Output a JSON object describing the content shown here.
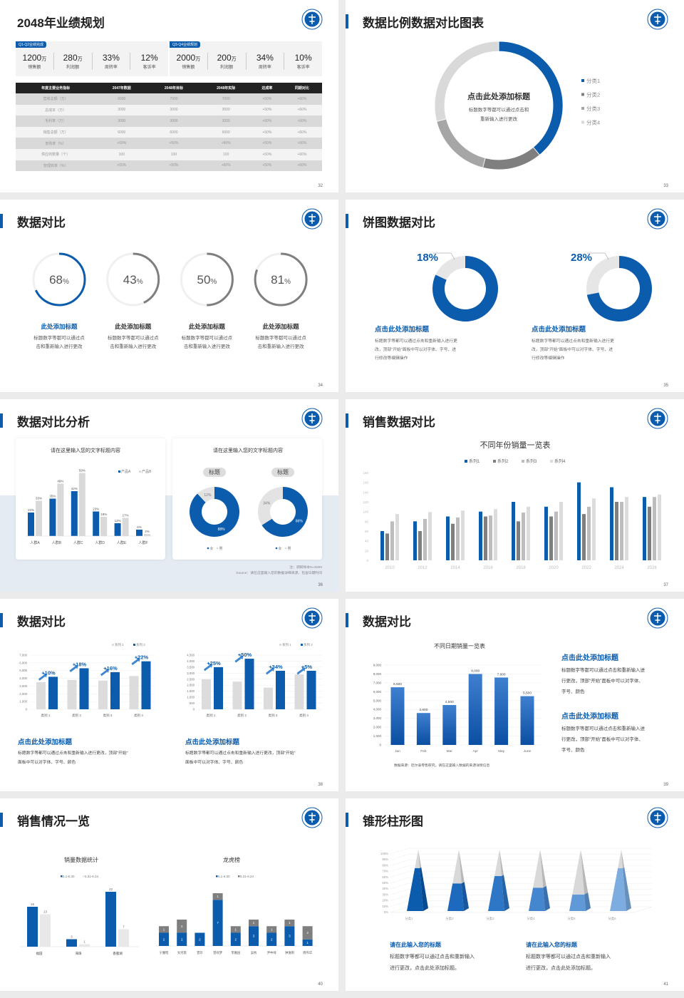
{
  "colors": {
    "blue": "#0b5cad",
    "dark_gray": "#7f7f7f",
    "mid_gray": "#a6a6a6",
    "light_gray": "#d9d9d9"
  },
  "logo_icon": "university-seal-icon",
  "s32": {
    "title": "2048年业绩规划",
    "page": "32",
    "kpi_groups": [
      {
        "tag": "Q1-Q2业绩完成",
        "items": [
          {
            "value": "1200",
            "unit": "万",
            "label": "销售额"
          },
          {
            "value": "280",
            "unit": "万",
            "label": "利润额"
          },
          {
            "value": "33%",
            "unit": "",
            "label": "周转率"
          },
          {
            "value": "12%",
            "unit": "",
            "label": "客诉率"
          }
        ]
      },
      {
        "tag": "Q3-Q4业绩规划",
        "items": [
          {
            "value": "2000",
            "unit": "万",
            "label": "销售额"
          },
          {
            "value": "200",
            "unit": "万",
            "label": "利润额"
          },
          {
            "value": "34%",
            "unit": "",
            "label": "周转率"
          },
          {
            "value": "10%",
            "unit": "",
            "label": "客诉率"
          }
        ]
      }
    ],
    "table": {
      "headers": [
        "年度主要业务指标",
        "2047年数据",
        "2048年目标",
        "2048年实际",
        "达成率",
        "同期对比"
      ],
      "rows": [
        [
          "营收总额（万）",
          "6000",
          "7000",
          "7000",
          "+50%",
          "+60%"
        ],
        [
          "总成本（万）",
          "3000",
          "3000",
          "3000",
          "+50%",
          "+60%"
        ],
        [
          "毛利率（万）",
          "3000",
          "3000",
          "3000",
          "+50%",
          "+60%"
        ],
        [
          "销售总额（万）",
          "6000",
          "6000",
          "6000",
          "+50%",
          "+60%"
        ],
        [
          "复购率（%）",
          "+60%",
          "+50%",
          "+60%",
          "+50%",
          "+60%"
        ],
        [
          "供应商数量（个）",
          "100",
          "100",
          "100",
          "+50%",
          "+60%"
        ],
        [
          "管理效率（%）",
          "+60%",
          "+50%",
          "+60%",
          "+50%",
          "+60%"
        ]
      ]
    }
  },
  "s33": {
    "title": "数据比例数据对比图表",
    "page": "33",
    "center_title": "点击此处添加标题",
    "center_desc": [
      "标题数字等都可以通过点击和",
      "重新输入进行更改"
    ],
    "chart_data": {
      "type": "pie",
      "donut": true,
      "categories": [
        "分类1",
        "分类2",
        "分类3",
        "分类4"
      ],
      "values": [
        39,
        15,
        17,
        29
      ],
      "legend": "right"
    }
  },
  "s34": {
    "title": "数据对比",
    "page": "34",
    "items": [
      {
        "value": 68,
        "label": "68",
        "unit": "%",
        "title": "此处添加标题",
        "desc": [
          "标题数字等都可以通过点",
          "击和重新输入进行更改"
        ],
        "accent": true
      },
      {
        "value": 43,
        "label": "43",
        "unit": "%",
        "title": "此处添加标题",
        "desc": [
          "标题数字等都可以通过点",
          "击和重新输入进行更改"
        ]
      },
      {
        "value": 50,
        "label": "50",
        "unit": "%",
        "title": "此处添加标题",
        "desc": [
          "标题数字等都可以通过点",
          "击和重新输入进行更改"
        ]
      },
      {
        "value": 81,
        "label": "81",
        "unit": "%",
        "title": "此处添加标题",
        "desc": [
          "标题数字等都可以通过点",
          "击和重新输入进行更改"
        ]
      }
    ]
  },
  "s35": {
    "title": "饼图数据对比",
    "page": "35",
    "items": [
      {
        "value": 18,
        "label": "18%",
        "title": "点击此处添加标题",
        "desc": [
          "标题数字等都可以通过点击和重新输入进行更",
          "改，顶部“开始”面板中可以对字体、字号、进",
          "行修改等编辑操作"
        ]
      },
      {
        "value": 28,
        "label": "28%",
        "title": "点击此处添加标题",
        "desc": [
          "标题数字等都可以通过点击和重新输入进行更",
          "改，顶部“开始”面板中可以对字体、字号、进",
          "行修改等编辑操作"
        ]
      }
    ]
  },
  "s36": {
    "title": "数据对比分析",
    "page": "36",
    "bar_chart": {
      "type": "bar",
      "title": "请在这里输入您的文字标题内容",
      "categories": [
        "人群A",
        "人群B",
        "人群C",
        "人群D",
        "人群E",
        "人群F"
      ],
      "series": [
        {
          "name": "产品A",
          "values": [
            22,
            35,
            42,
            23,
            12,
            6
          ]
        },
        {
          "name": "产品B",
          "values": [
            33,
            49,
            59,
            18,
            17,
            2
          ]
        }
      ],
      "value_labels": [
        [
          "22%",
          "35%",
          "42%",
          "23%",
          "12%",
          "6%"
        ],
        [
          "33%",
          "49%",
          "59%",
          "18%",
          "17%",
          "2%"
        ]
      ],
      "legend": "top-right"
    },
    "donut_title": "请在这里输入您的文字标题内容",
    "donuts": [
      {
        "pill": "标题",
        "values": [
          88,
          12
        ],
        "labels": [
          "88%",
          "12%"
        ],
        "legend": [
          "女",
          "男"
        ]
      },
      {
        "pill": "标题",
        "values": [
          66,
          34
        ],
        "labels": [
          "66%",
          "34%"
        ],
        "legend": [
          "女",
          "男"
        ]
      }
    ],
    "note": "注：调研样本N=5000",
    "source": "Source：请在这里输入您的数据详细来源，包含日期时间"
  },
  "s37": {
    "title": "销售数据对比",
    "page": "37",
    "chart_data": {
      "type": "bar",
      "title": "不同年份销量一览表",
      "categories": [
        "2010",
        "2012",
        "2014",
        "2016",
        "2018",
        "2020",
        "2022",
        "2024",
        "2026"
      ],
      "ylim": [
        0,
        180
      ],
      "yticks": [
        "0",
        "20",
        "40",
        "60",
        "80",
        "100",
        "120",
        "140",
        "160",
        "180"
      ],
      "legend": "top",
      "series": [
        {
          "name": "系列1",
          "values": [
            60,
            80,
            90,
            100,
            120,
            110,
            160,
            150,
            130
          ]
        },
        {
          "name": "系列2",
          "values": [
            55,
            60,
            75,
            90,
            80,
            90,
            95,
            120,
            110
          ]
        },
        {
          "name": "系列3",
          "values": [
            80,
            85,
            88,
            92,
            98,
            100,
            110,
            120,
            130
          ]
        },
        {
          "name": "系列4",
          "values": [
            95,
            99,
            102,
            105,
            110,
            120,
            127,
            130,
            135
          ]
        }
      ]
    }
  },
  "s38": {
    "title": "数据对比",
    "page": "38",
    "charts": [
      {
        "type": "bar",
        "categories": [
          "类别 1",
          "类别 2",
          "类别 3",
          "类别 4"
        ],
        "ylim": [
          0,
          7000
        ],
        "yticks": [
          "0",
          "1,000",
          "2,000",
          "3,000",
          "4,000",
          "5,000",
          "6,000",
          "7,000"
        ],
        "series": [
          {
            "name": "系列 1",
            "values": [
              3500,
              3800,
              3700,
              4300
            ]
          },
          {
            "name": "系列 2",
            "values": [
              4200,
              5300,
              4800,
              6200
            ]
          }
        ],
        "growth": [
          "+10%",
          "+18%",
          "+16%",
          "+22%"
        ],
        "title": "点击此处添加标题",
        "desc": [
          "标题数字等都可以通过点击和重新输入进行更改，顶部“开始”",
          "面板中可以对字体、字号、颜色"
        ]
      },
      {
        "type": "bar",
        "categories": [
          "类别 1",
          "类别 2",
          "类别 3",
          "类别 4"
        ],
        "ylim": [
          0,
          4500
        ],
        "yticks": [
          "0",
          "500",
          "1,000",
          "1,500",
          "2,000",
          "2,500",
          "3,000",
          "3,500",
          "4,000",
          "4,500"
        ],
        "series": [
          {
            "name": "系列 1",
            "values": [
              2500,
              2300,
              1800,
              2900
            ]
          },
          {
            "name": "系列 2",
            "values": [
              3500,
              4200,
              3200,
              3200
            ]
          }
        ],
        "growth": [
          "+25%",
          "+50%",
          "+34%",
          "+5%"
        ],
        "title": "点击此处添加标题",
        "desc": [
          "标题数字等都可以通过点击和重新输入进行更改，顶部“开始”",
          "面板中可以对字体、字号、颜色"
        ]
      }
    ]
  },
  "s39": {
    "title": "数据对比",
    "page": "39",
    "chart_data": {
      "type": "bar",
      "title": "不同日期销量一览表",
      "categories": [
        "Jan",
        "Feb",
        "Mar",
        "Apr",
        "May",
        "June"
      ],
      "values": [
        6500,
        3600,
        4500,
        8000,
        7600,
        5500
      ],
      "value_labels": [
        "6,500",
        "3,600",
        "4,500",
        "8,000",
        "7,600",
        "5,500"
      ],
      "ylim": [
        0,
        9000
      ],
      "yticks": [
        "0",
        "1,000",
        "2,000",
        "3,000",
        "4,000",
        "5,000",
        "6,000",
        "7,000",
        "8,000",
        "9,000"
      ]
    },
    "source": "数据来源：厄尔泰零售研究，请在这里输入数据的来源详情信息",
    "blocks": [
      {
        "title": "点击此处添加标题",
        "desc": [
          "标题数字等都可以通过点击和重新输入进",
          "行更改，顶部“开始”面板中可以对字体、",
          "字号、颜色"
        ]
      },
      {
        "title": "点击此处添加标题",
        "desc": [
          "标题数字等都可以通过点击和重新输入进",
          "行更改，顶部“开始”面板中可以对字体、",
          "字号、颜色"
        ]
      }
    ]
  },
  "s40": {
    "title": "销售情况一览",
    "page": "40",
    "left_chart": {
      "type": "bar",
      "title": "销量数据统计",
      "categories": [
        "福田",
        "海珠",
        "香蜜湖"
      ],
      "series": [
        {
          "name": "5.1-5.30",
          "values": [
            16,
            3,
            22
          ]
        },
        {
          "name": "5.31-6.24",
          "values": [
            13,
            1,
            7
          ]
        }
      ],
      "value_labels": [
        [
          "16",
          "3",
          "22"
        ],
        [
          "13",
          "1",
          "7"
        ]
      ],
      "legend": "top"
    },
    "right_chart": {
      "type": "bar",
      "stacked": true,
      "title": "龙虎榜",
      "categories": [
        "宁嘉昭",
        "文河南",
        "曾珍",
        "曾祥梦",
        "李嘉园",
        "吴杭",
        "尹中绿",
        "钟逸明",
        "周伟华"
      ],
      "series": [
        {
          "name": "5.1-5.30",
          "values": [
            2,
            2,
            2,
            7,
            2,
            3,
            2,
            3,
            1
          ]
        },
        {
          "name": "5.31-6.24",
          "values": [
            1,
            2,
            0,
            1,
            1,
            1,
            1,
            1,
            2
          ]
        }
      ],
      "value_labels": [
        [
          "2",
          "2",
          "2",
          "7",
          "2",
          "3",
          "2",
          "3",
          "1"
        ],
        [
          "1",
          "2",
          "0",
          "1",
          "1",
          "1",
          "1",
          "1",
          "2"
        ]
      ],
      "legend": "top"
    }
  },
  "s41": {
    "title": "锥形柱形图",
    "page": "41",
    "chart_data": {
      "type": "bar",
      "shape": "pyramid",
      "categories": [
        "分类1",
        "分类2",
        "分类3",
        "分类4",
        "分类5",
        "分类6"
      ],
      "values": [
        70,
        45,
        57,
        38,
        27,
        70
      ],
      "ylim": [
        0,
        100
      ],
      "yticks": [
        "0%",
        "10%",
        "20%",
        "30%",
        "40%",
        "50%",
        "60%",
        "70%",
        "80%",
        "90%",
        "100%"
      ]
    },
    "blocks": [
      {
        "title": "请在此输入您的标题",
        "desc": [
          "标题数字等都可以通过点击和重新输入",
          "进行更改，点击此处添加标题。"
        ]
      },
      {
        "title": "请在此输入您的标题",
        "desc": [
          "标题数字等都可以通过点击和重新输入",
          "进行更改，点击此处添加标题。"
        ]
      }
    ]
  }
}
